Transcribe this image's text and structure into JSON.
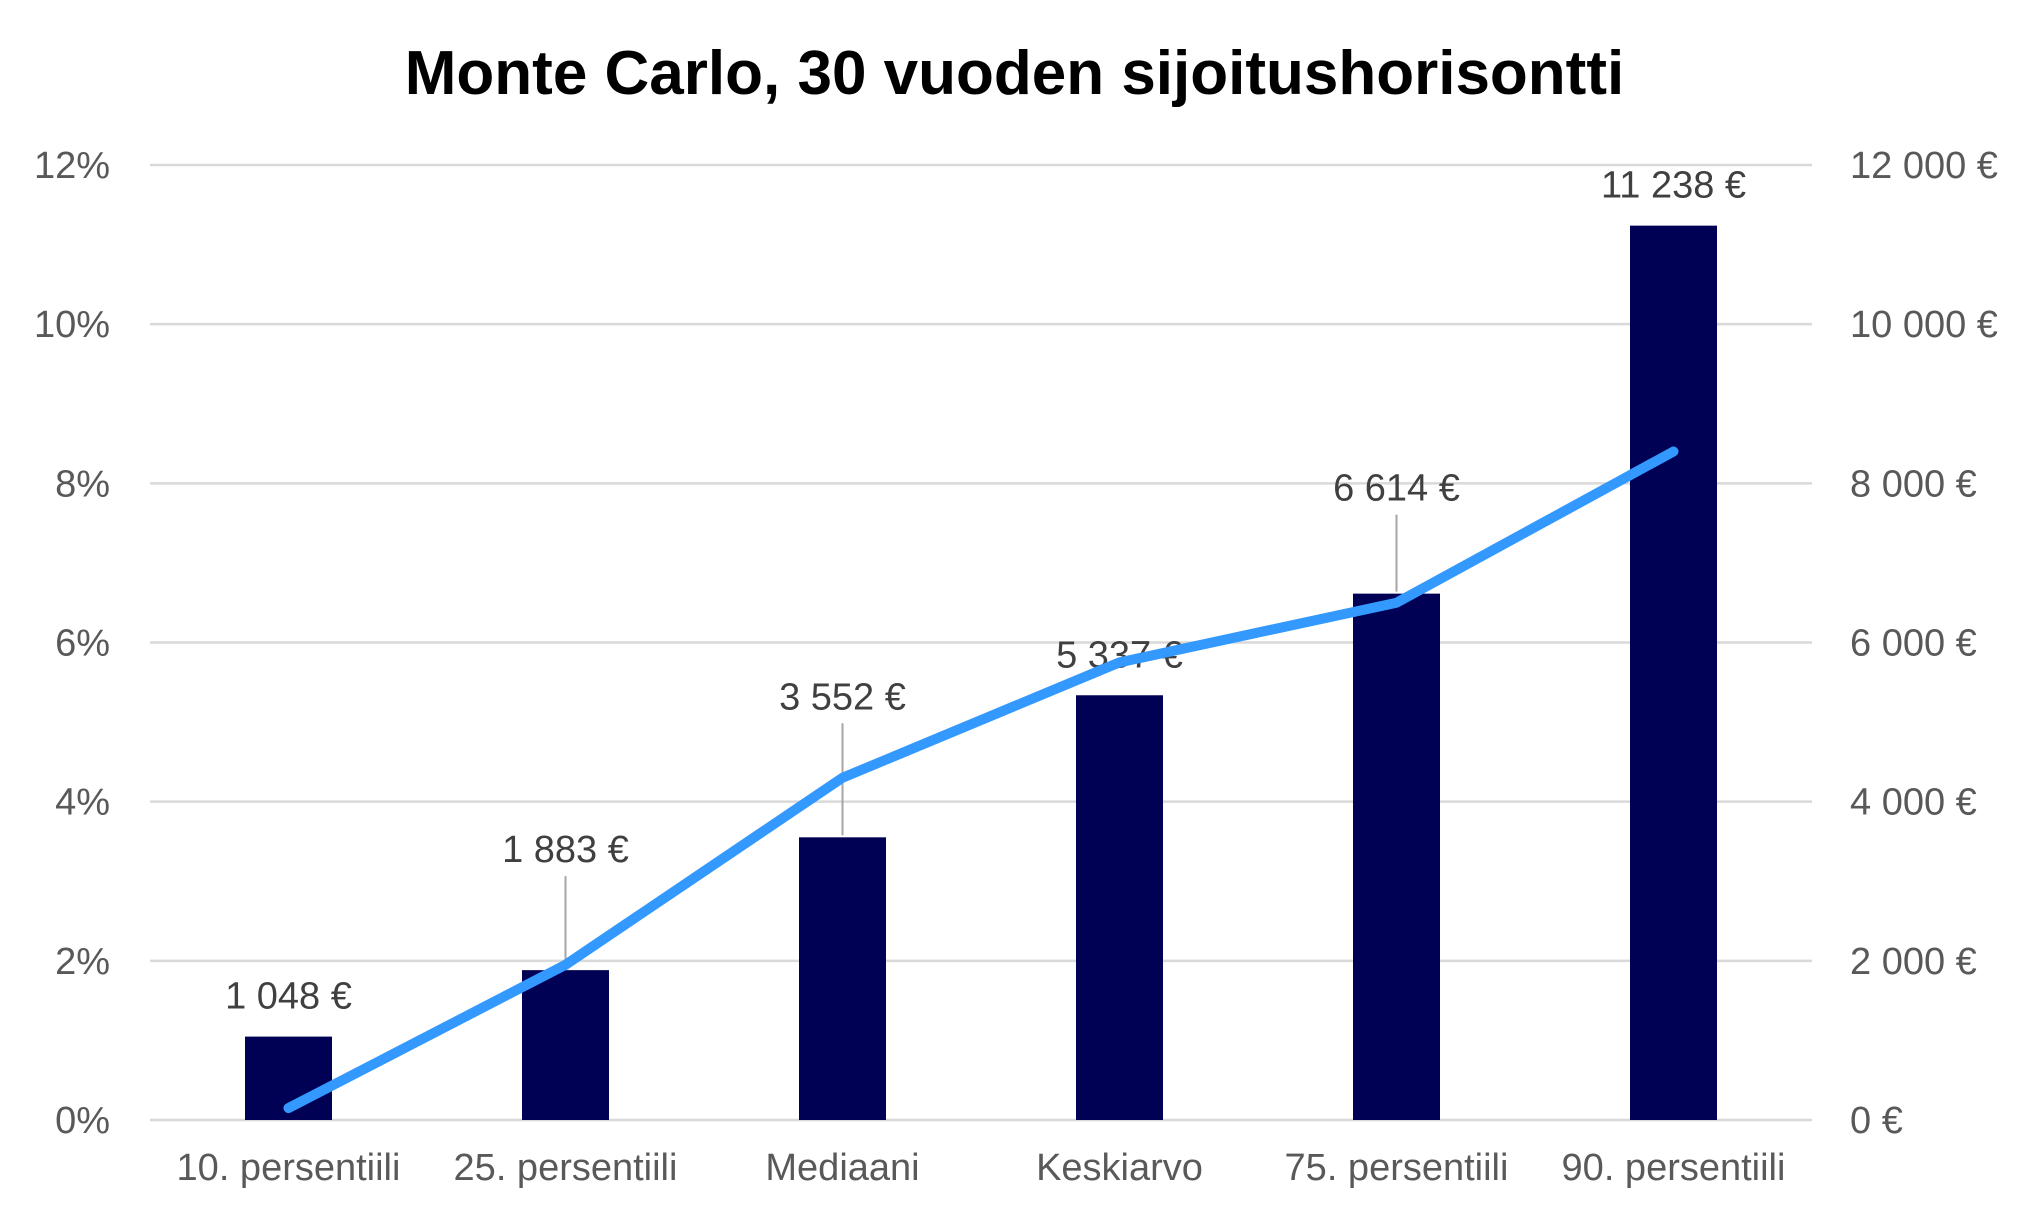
{
  "chart_data": {
    "type": "bar",
    "title": "Monte Carlo, 30 vuoden sijoitushorisontti",
    "categories": [
      "10. persentiili",
      "25. persentiili",
      "Mediaani",
      "Keskiarvo",
      "75. persentiili",
      "90. persentiili"
    ],
    "series": [
      {
        "type": "bar",
        "axis": "right",
        "color": "#000055",
        "values": [
          1048,
          1883,
          3552,
          5337,
          6614,
          11238
        ],
        "data_labels": [
          "1 048 €",
          "1 883 €",
          "3 552 €",
          "5 337 €",
          "6 614 €",
          "11 238 €"
        ]
      },
      {
        "type": "line",
        "axis": "left",
        "color": "#3399FF",
        "values": [
          0.15,
          1.95,
          4.3,
          5.75,
          6.5,
          8.4
        ]
      }
    ],
    "y_left": {
      "lim": [
        0,
        12
      ],
      "ticks": [
        0,
        2,
        4,
        6,
        8,
        10,
        12
      ],
      "tick_labels": [
        "0%",
        "2%",
        "4%",
        "6%",
        "8%",
        "10%",
        "12%"
      ]
    },
    "y_right": {
      "lim": [
        0,
        12000
      ],
      "ticks": [
        0,
        2000,
        4000,
        6000,
        8000,
        10000,
        12000
      ],
      "tick_labels": [
        "0 €",
        "2 000 €",
        "4 000 €",
        "6 000 €",
        "8 000 €",
        "10 000 €",
        "12 000 €"
      ]
    },
    "grid": true,
    "legend": "none"
  }
}
